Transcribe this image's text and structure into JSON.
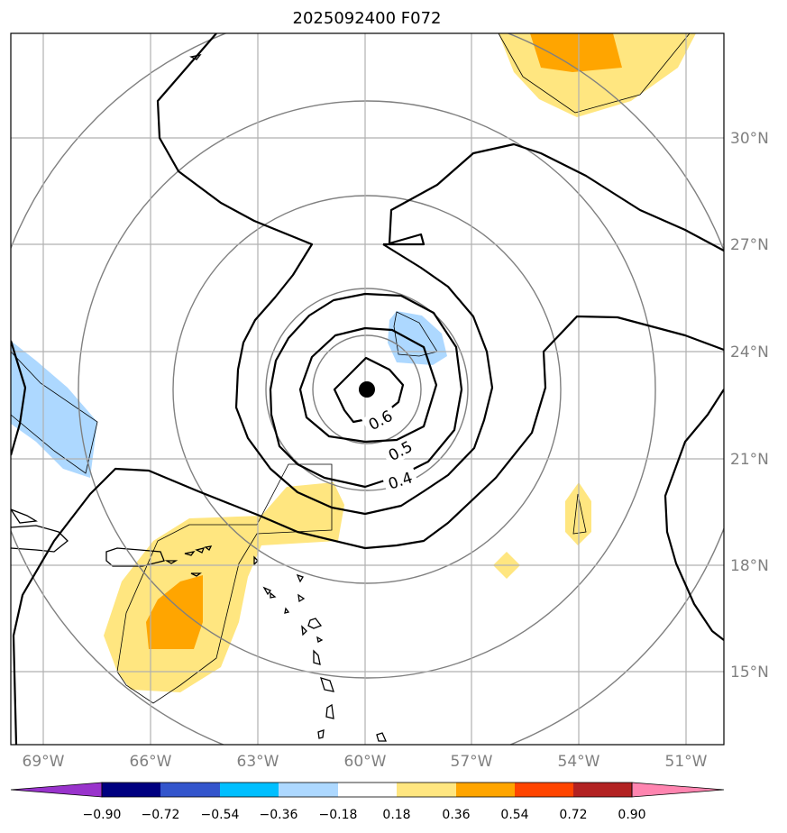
{
  "title": "2025092400 F072",
  "lon_labels": [
    "69°W",
    "66°W",
    "63°W",
    "60°W",
    "57°W",
    "54°W",
    "51°W"
  ],
  "lat_labels": [
    "30°N",
    "27°N",
    "24°N",
    "21°N",
    "18°N",
    "15°N"
  ],
  "contour_labels": [
    "0.6",
    "0.5",
    "0.4"
  ],
  "colorbar": {
    "ticks": [
      "−0.90",
      "−0.72",
      "−0.54",
      "−0.36",
      "−0.18",
      "0.18",
      "0.36",
      "0.54",
      "0.72",
      "0.90"
    ],
    "colors": [
      "#9933cc",
      "#000080",
      "#3355cc",
      "#00bfff",
      "#add8ff",
      "#ffffff",
      "#ffe680",
      "#ffa500",
      "#ff4500",
      "#b22222",
      "#ff85b0"
    ]
  },
  "storm_center_marker": "filled-circle",
  "colors": {
    "positive_fill_low": "#ffe680",
    "positive_fill_mid": "#ffa500",
    "negative_fill": "#add8ff",
    "contour_line": "#000000",
    "range_ring": "#808080",
    "gridline": "#b0b0b0"
  }
}
